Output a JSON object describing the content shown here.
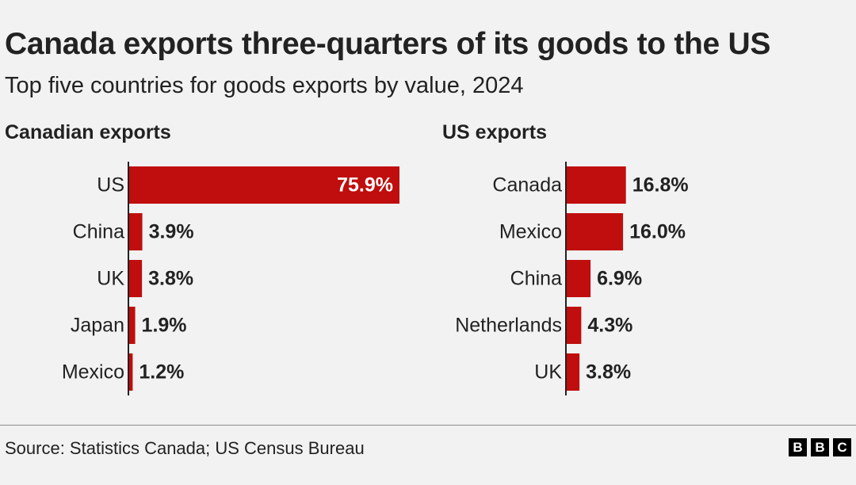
{
  "title": "Canada exports three-quarters of its goods to the US",
  "subtitle": "Top five countries for goods exports by value, 2024",
  "source": "Source: Statistics Canada; US Census Bureau",
  "logo": [
    "B",
    "B",
    "C"
  ],
  "colors": {
    "bar": "#c00d0d",
    "axis": "#222222",
    "background": "#f2f2f2"
  },
  "chart_data": [
    {
      "type": "bar",
      "orientation": "horizontal",
      "title": "Canadian exports",
      "categories": [
        "US",
        "China",
        "UK",
        "Japan",
        "Mexico"
      ],
      "values": [
        75.9,
        3.9,
        3.8,
        1.9,
        1.2
      ],
      "value_labels": [
        "75.9%",
        "3.9%",
        "3.8%",
        "1.9%",
        "1.2%"
      ],
      "unit": "%",
      "xlim": [
        0,
        75.9
      ]
    },
    {
      "type": "bar",
      "orientation": "horizontal",
      "title": "US exports",
      "categories": [
        "Canada",
        "Mexico",
        "China",
        "Netherlands",
        "UK"
      ],
      "values": [
        16.8,
        16.0,
        6.9,
        4.3,
        3.8
      ],
      "value_labels": [
        "16.8%",
        "16.0%",
        "6.9%",
        "4.3%",
        "3.8%"
      ],
      "unit": "%",
      "xlim": [
        0,
        75.9
      ]
    }
  ]
}
